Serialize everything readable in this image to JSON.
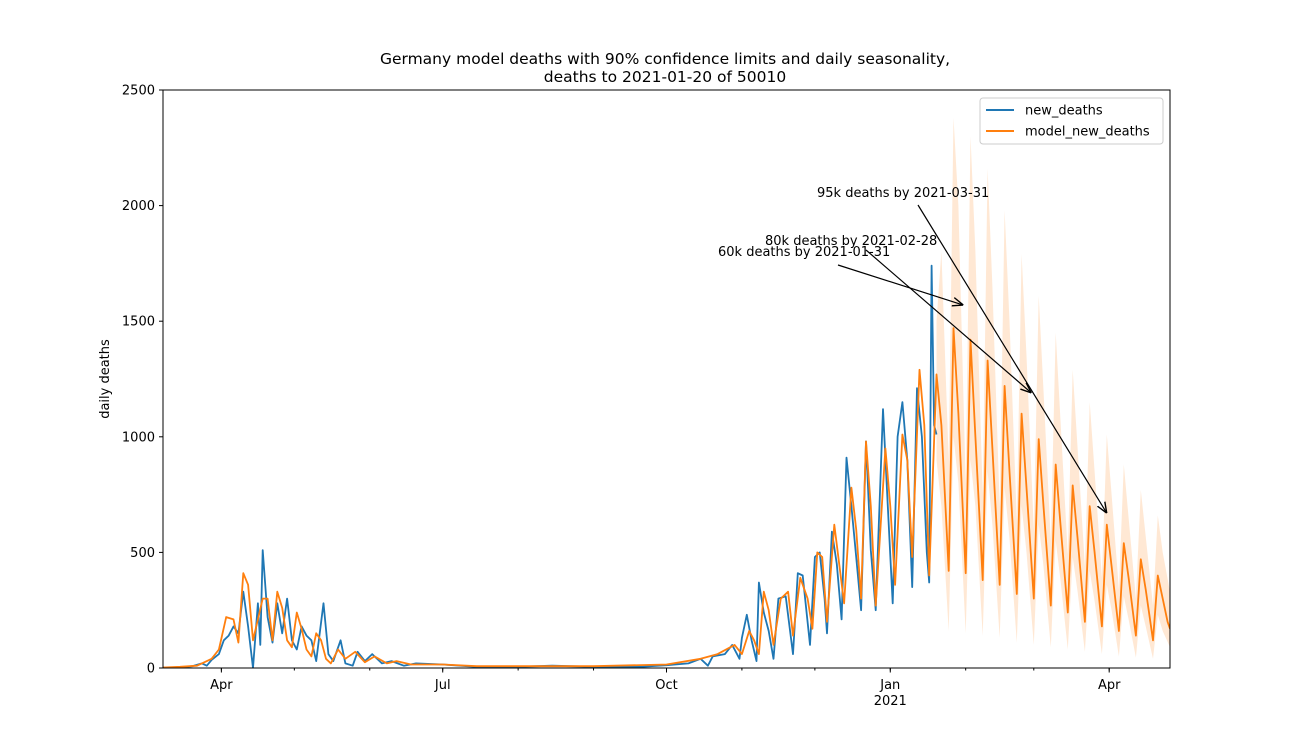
{
  "chart_data": {
    "type": "line",
    "title_line1": "Germany model deaths with 90% confidence limits and daily seasonality,",
    "title_line2": "deaths to 2021-01-20 of 50010",
    "ylabel": "daily deaths",
    "xlabel": "",
    "xlim": [
      "2020-03-08",
      "2021-04-26"
    ],
    "ylim": [
      0,
      2500
    ],
    "y_ticks": [
      0,
      500,
      1000,
      1500,
      2000,
      2500
    ],
    "x_ticks": [
      {
        "date": "2020-04-01",
        "label": "Apr",
        "sub": ""
      },
      {
        "date": "2020-07-01",
        "label": "Jul",
        "sub": ""
      },
      {
        "date": "2020-10-01",
        "label": "Oct",
        "sub": ""
      },
      {
        "date": "2021-01-01",
        "label": "Jan",
        "sub": "2021"
      },
      {
        "date": "2021-04-01",
        "label": "Apr",
        "sub": ""
      }
    ],
    "legend_position": "top-right",
    "grid": false,
    "series": [
      {
        "name": "new_deaths",
        "color": "#1f77b4",
        "points": [
          [
            "2020-03-08",
            0
          ],
          [
            "2020-03-15",
            2
          ],
          [
            "2020-03-20",
            8
          ],
          [
            "2020-03-24",
            20
          ],
          [
            "2020-03-26",
            10
          ],
          [
            "2020-03-28",
            35
          ],
          [
            "2020-03-31",
            60
          ],
          [
            "2020-04-02",
            120
          ],
          [
            "2020-04-04",
            140
          ],
          [
            "2020-04-06",
            180
          ],
          [
            "2020-04-08",
            150
          ],
          [
            "2020-04-10",
            330
          ],
          [
            "2020-04-12",
            180
          ],
          [
            "2020-04-14",
            0
          ],
          [
            "2020-04-16",
            280
          ],
          [
            "2020-04-17",
            100
          ],
          [
            "2020-04-18",
            510
          ],
          [
            "2020-04-20",
            220
          ],
          [
            "2020-04-22",
            110
          ],
          [
            "2020-04-24",
            280
          ],
          [
            "2020-04-26",
            150
          ],
          [
            "2020-04-28",
            300
          ],
          [
            "2020-04-30",
            120
          ],
          [
            "2020-05-02",
            80
          ],
          [
            "2020-05-04",
            180
          ],
          [
            "2020-05-06",
            140
          ],
          [
            "2020-05-08",
            120
          ],
          [
            "2020-05-10",
            30
          ],
          [
            "2020-05-13",
            280
          ],
          [
            "2020-05-15",
            60
          ],
          [
            "2020-05-17",
            30
          ],
          [
            "2020-05-20",
            120
          ],
          [
            "2020-05-22",
            20
          ],
          [
            "2020-05-25",
            10
          ],
          [
            "2020-05-27",
            70
          ],
          [
            "2020-05-30",
            30
          ],
          [
            "2020-06-02",
            60
          ],
          [
            "2020-06-06",
            20
          ],
          [
            "2020-06-10",
            30
          ],
          [
            "2020-06-15",
            10
          ],
          [
            "2020-06-20",
            20
          ],
          [
            "2020-07-01",
            15
          ],
          [
            "2020-07-15",
            5
          ],
          [
            "2020-08-01",
            5
          ],
          [
            "2020-08-15",
            10
          ],
          [
            "2020-09-01",
            5
          ],
          [
            "2020-09-20",
            5
          ],
          [
            "2020-10-01",
            12
          ],
          [
            "2020-10-10",
            20
          ],
          [
            "2020-10-15",
            40
          ],
          [
            "2020-10-18",
            10
          ],
          [
            "2020-10-20",
            50
          ],
          [
            "2020-10-25",
            60
          ],
          [
            "2020-10-28",
            100
          ],
          [
            "2020-10-31",
            40
          ],
          [
            "2020-11-01",
            130
          ],
          [
            "2020-11-03",
            230
          ],
          [
            "2020-11-05",
            120
          ],
          [
            "2020-11-07",
            30
          ],
          [
            "2020-11-08",
            370
          ],
          [
            "2020-11-10",
            240
          ],
          [
            "2020-11-12",
            160
          ],
          [
            "2020-11-14",
            40
          ],
          [
            "2020-11-16",
            300
          ],
          [
            "2020-11-19",
            310
          ],
          [
            "2020-11-22",
            60
          ],
          [
            "2020-11-24",
            410
          ],
          [
            "2020-11-26",
            400
          ],
          [
            "2020-11-29",
            100
          ],
          [
            "2020-12-01",
            480
          ],
          [
            "2020-12-03",
            500
          ],
          [
            "2020-12-05",
            300
          ],
          [
            "2020-12-06",
            150
          ],
          [
            "2020-12-08",
            590
          ],
          [
            "2020-12-10",
            450
          ],
          [
            "2020-12-12",
            210
          ],
          [
            "2020-12-14",
            910
          ],
          [
            "2020-12-16",
            700
          ],
          [
            "2020-12-18",
            480
          ],
          [
            "2020-12-20",
            250
          ],
          [
            "2020-12-22",
            980
          ],
          [
            "2020-12-24",
            510
          ],
          [
            "2020-12-26",
            250
          ],
          [
            "2020-12-29",
            1120
          ],
          [
            "2020-12-31",
            700
          ],
          [
            "2021-01-02",
            280
          ],
          [
            "2021-01-04",
            1000
          ],
          [
            "2021-01-06",
            1150
          ],
          [
            "2021-01-08",
            900
          ],
          [
            "2021-01-10",
            350
          ],
          [
            "2021-01-12",
            1210
          ],
          [
            "2021-01-14",
            1000
          ],
          [
            "2021-01-16",
            500
          ],
          [
            "2021-01-17",
            370
          ],
          [
            "2021-01-18",
            1740
          ],
          [
            "2021-01-19",
            1050
          ],
          [
            "2021-01-20",
            1010
          ]
        ]
      },
      {
        "name": "model_new_deaths",
        "color": "#ff7f0e",
        "points": [
          [
            "2020-03-08",
            2
          ],
          [
            "2020-03-15",
            5
          ],
          [
            "2020-03-22",
            10
          ],
          [
            "2020-03-28",
            40
          ],
          [
            "2020-03-31",
            80
          ],
          [
            "2020-04-03",
            220
          ],
          [
            "2020-04-06",
            210
          ],
          [
            "2020-04-08",
            110
          ],
          [
            "2020-04-10",
            410
          ],
          [
            "2020-04-12",
            360
          ],
          [
            "2020-04-14",
            120
          ],
          [
            "2020-04-16",
            210
          ],
          [
            "2020-04-18",
            300
          ],
          [
            "2020-04-20",
            300
          ],
          [
            "2020-04-22",
            120
          ],
          [
            "2020-04-24",
            330
          ],
          [
            "2020-04-26",
            260
          ],
          [
            "2020-04-28",
            120
          ],
          [
            "2020-04-30",
            90
          ],
          [
            "2020-05-02",
            240
          ],
          [
            "2020-05-04",
            170
          ],
          [
            "2020-05-06",
            80
          ],
          [
            "2020-05-08",
            50
          ],
          [
            "2020-05-10",
            150
          ],
          [
            "2020-05-12",
            120
          ],
          [
            "2020-05-14",
            40
          ],
          [
            "2020-05-16",
            20
          ],
          [
            "2020-05-19",
            80
          ],
          [
            "2020-05-22",
            40
          ],
          [
            "2020-05-26",
            70
          ],
          [
            "2020-05-30",
            25
          ],
          [
            "2020-06-03",
            50
          ],
          [
            "2020-06-08",
            20
          ],
          [
            "2020-06-12",
            30
          ],
          [
            "2020-06-18",
            15
          ],
          [
            "2020-07-01",
            15
          ],
          [
            "2020-07-15",
            8
          ],
          [
            "2020-08-01",
            8
          ],
          [
            "2020-09-01",
            8
          ],
          [
            "2020-10-01",
            15
          ],
          [
            "2020-10-15",
            40
          ],
          [
            "2020-10-22",
            60
          ],
          [
            "2020-10-29",
            100
          ],
          [
            "2020-11-01",
            60
          ],
          [
            "2020-11-04",
            160
          ],
          [
            "2020-11-06",
            120
          ],
          [
            "2020-11-08",
            60
          ],
          [
            "2020-11-10",
            330
          ],
          [
            "2020-11-12",
            250
          ],
          [
            "2020-11-14",
            100
          ],
          [
            "2020-11-17",
            300
          ],
          [
            "2020-11-20",
            330
          ],
          [
            "2020-11-22",
            140
          ],
          [
            "2020-11-25",
            390
          ],
          [
            "2020-11-28",
            300
          ],
          [
            "2020-11-30",
            170
          ],
          [
            "2020-12-02",
            500
          ],
          [
            "2020-12-04",
            480
          ],
          [
            "2020-12-06",
            200
          ],
          [
            "2020-12-09",
            620
          ],
          [
            "2020-12-11",
            450
          ],
          [
            "2020-12-13",
            280
          ],
          [
            "2020-12-16",
            780
          ],
          [
            "2020-12-18",
            600
          ],
          [
            "2020-12-20",
            300
          ],
          [
            "2020-12-22",
            980
          ],
          [
            "2020-12-24",
            700
          ],
          [
            "2020-12-26",
            270
          ],
          [
            "2020-12-30",
            950
          ],
          [
            "2021-01-01",
            700
          ],
          [
            "2021-01-03",
            360
          ],
          [
            "2021-01-06",
            1010
          ],
          [
            "2021-01-08",
            900
          ],
          [
            "2021-01-10",
            480
          ],
          [
            "2021-01-13",
            1290
          ],
          [
            "2021-01-15",
            1050
          ],
          [
            "2021-01-17",
            400
          ],
          [
            "2021-01-20",
            1270
          ],
          [
            "2021-01-22",
            1050
          ],
          [
            "2021-01-25",
            420
          ],
          [
            "2021-01-27",
            1470
          ],
          [
            "2021-01-29",
            1100
          ],
          [
            "2021-02-01",
            410
          ],
          [
            "2021-02-03",
            1420
          ],
          [
            "2021-02-05",
            1000
          ],
          [
            "2021-02-08",
            380
          ],
          [
            "2021-02-10",
            1330
          ],
          [
            "2021-02-12",
            950
          ],
          [
            "2021-02-15",
            360
          ],
          [
            "2021-02-17",
            1220
          ],
          [
            "2021-02-19",
            850
          ],
          [
            "2021-02-22",
            320
          ],
          [
            "2021-02-24",
            1100
          ],
          [
            "2021-02-26",
            780
          ],
          [
            "2021-03-01",
            300
          ],
          [
            "2021-03-03",
            990
          ],
          [
            "2021-03-05",
            700
          ],
          [
            "2021-03-08",
            270
          ],
          [
            "2021-03-10",
            880
          ],
          [
            "2021-03-12",
            620
          ],
          [
            "2021-03-15",
            240
          ],
          [
            "2021-03-17",
            790
          ],
          [
            "2021-03-19",
            560
          ],
          [
            "2021-03-22",
            200
          ],
          [
            "2021-03-24",
            700
          ],
          [
            "2021-03-26",
            500
          ],
          [
            "2021-03-29",
            180
          ],
          [
            "2021-03-31",
            620
          ],
          [
            "2021-04-02",
            440
          ],
          [
            "2021-04-05",
            160
          ],
          [
            "2021-04-07",
            540
          ],
          [
            "2021-04-09",
            390
          ],
          [
            "2021-04-12",
            140
          ],
          [
            "2021-04-14",
            470
          ],
          [
            "2021-04-16",
            340
          ],
          [
            "2021-04-19",
            120
          ],
          [
            "2021-04-21",
            400
          ],
          [
            "2021-04-23",
            300
          ],
          [
            "2021-04-25",
            200
          ],
          [
            "2021-04-26",
            170
          ]
        ]
      }
    ],
    "confidence_band": {
      "color": "#ff7f0e",
      "points": [
        [
          "2021-01-20",
          900,
          1500
        ],
        [
          "2021-01-22",
          700,
          1800
        ],
        [
          "2021-01-25",
          160,
          900
        ],
        [
          "2021-01-27",
          1000,
          2380
        ],
        [
          "2021-01-29",
          800,
          2000
        ],
        [
          "2021-02-01",
          150,
          800
        ],
        [
          "2021-02-03",
          900,
          2300
        ],
        [
          "2021-02-05",
          700,
          1800
        ],
        [
          "2021-02-08",
          140,
          750
        ],
        [
          "2021-02-10",
          850,
          2160
        ],
        [
          "2021-02-12",
          620,
          1650
        ],
        [
          "2021-02-15",
          130,
          700
        ],
        [
          "2021-02-17",
          780,
          1980
        ],
        [
          "2021-02-19",
          560,
          1500
        ],
        [
          "2021-02-22",
          110,
          640
        ],
        [
          "2021-02-24",
          700,
          1790
        ],
        [
          "2021-02-26",
          500,
          1350
        ],
        [
          "2021-03-01",
          100,
          600
        ],
        [
          "2021-03-03",
          620,
          1610
        ],
        [
          "2021-03-05",
          440,
          1200
        ],
        [
          "2021-03-08",
          90,
          550
        ],
        [
          "2021-03-10",
          550,
          1450
        ],
        [
          "2021-03-12",
          380,
          1070
        ],
        [
          "2021-03-15",
          80,
          490
        ],
        [
          "2021-03-17",
          480,
          1290
        ],
        [
          "2021-03-19",
          330,
          950
        ],
        [
          "2021-03-22",
          70,
          440
        ],
        [
          "2021-03-24",
          420,
          1150
        ],
        [
          "2021-03-26",
          290,
          850
        ],
        [
          "2021-03-29",
          60,
          390
        ],
        [
          "2021-03-31",
          360,
          1010
        ],
        [
          "2021-04-02",
          250,
          750
        ],
        [
          "2021-04-05",
          50,
          340
        ],
        [
          "2021-04-07",
          310,
          880
        ],
        [
          "2021-04-09",
          210,
          650
        ],
        [
          "2021-04-12",
          45,
          300
        ],
        [
          "2021-04-14",
          270,
          770
        ],
        [
          "2021-04-16",
          180,
          570
        ],
        [
          "2021-04-19",
          40,
          270
        ],
        [
          "2021-04-21",
          230,
          660
        ],
        [
          "2021-04-23",
          160,
          500
        ],
        [
          "2021-04-26",
          90,
          330
        ]
      ]
    },
    "annotations": [
      {
        "text": "60k deaths by 2021-01-31",
        "target": [
          "2021-01-31",
          1570
        ]
      },
      {
        "text": "80k deaths by 2021-02-28",
        "target": [
          "2021-02-28",
          1190
        ]
      },
      {
        "text": "95k deaths by 2021-03-31",
        "target": [
          "2021-03-31",
          670
        ]
      }
    ]
  }
}
